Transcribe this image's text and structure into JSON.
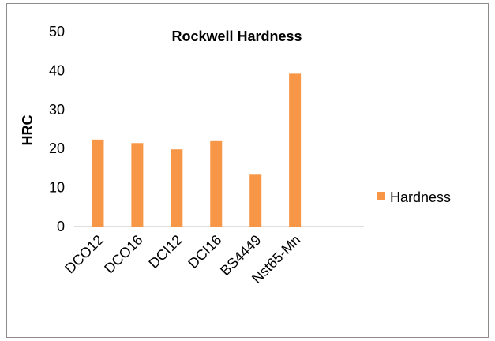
{
  "chart_data": {
    "type": "bar",
    "title": "Rockwell Hardness",
    "xlabel": "",
    "ylabel": "HRC",
    "categories": [
      "DCO12",
      "DCO16",
      "DCI12",
      "DCI16",
      "BS4449",
      "Nst65-Mn"
    ],
    "series": [
      {
        "name": "Hardness",
        "values": [
          22.3,
          21.4,
          19.8,
          22.1,
          13.3,
          39.2
        ],
        "color": "#f79646"
      }
    ],
    "ylim": [
      0,
      50
    ],
    "yticks": [
      "0",
      "10",
      "20",
      "30",
      "40",
      "50"
    ],
    "grid": false,
    "legend_position": "right"
  }
}
